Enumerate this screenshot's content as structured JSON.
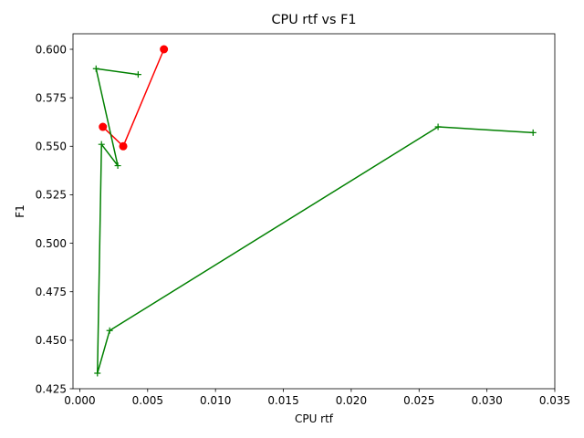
{
  "chart_data": {
    "type": "line",
    "title": "CPU rtf vs F1",
    "xlabel": "CPU rtf",
    "ylabel": "F1",
    "xlim": [
      -0.0005,
      0.035
    ],
    "ylim": [
      0.425,
      0.608
    ],
    "x_ticks": [
      "0.000",
      "0.005",
      "0.010",
      "0.015",
      "0.020",
      "0.025",
      "0.030",
      "0.035"
    ],
    "y_ticks": [
      "0.425",
      "0.450",
      "0.475",
      "0.500",
      "0.525",
      "0.550",
      "0.575",
      "0.600"
    ],
    "grid": false,
    "series": [
      {
        "color": "#ff0000",
        "marker": "circle",
        "points": [
          [
            0.0062,
            0.6
          ],
          [
            0.0032,
            0.55
          ],
          [
            0.0017,
            0.56
          ]
        ]
      },
      {
        "color": "#008000",
        "marker": "plus",
        "points": [
          [
            0.0043,
            0.587
          ],
          [
            0.0012,
            0.59
          ],
          [
            0.0028,
            0.54
          ],
          [
            0.0016,
            0.551
          ],
          [
            0.0013,
            0.433
          ],
          [
            0.0022,
            0.455
          ],
          [
            0.0264,
            0.56
          ],
          [
            0.0334,
            0.557
          ]
        ]
      }
    ]
  }
}
